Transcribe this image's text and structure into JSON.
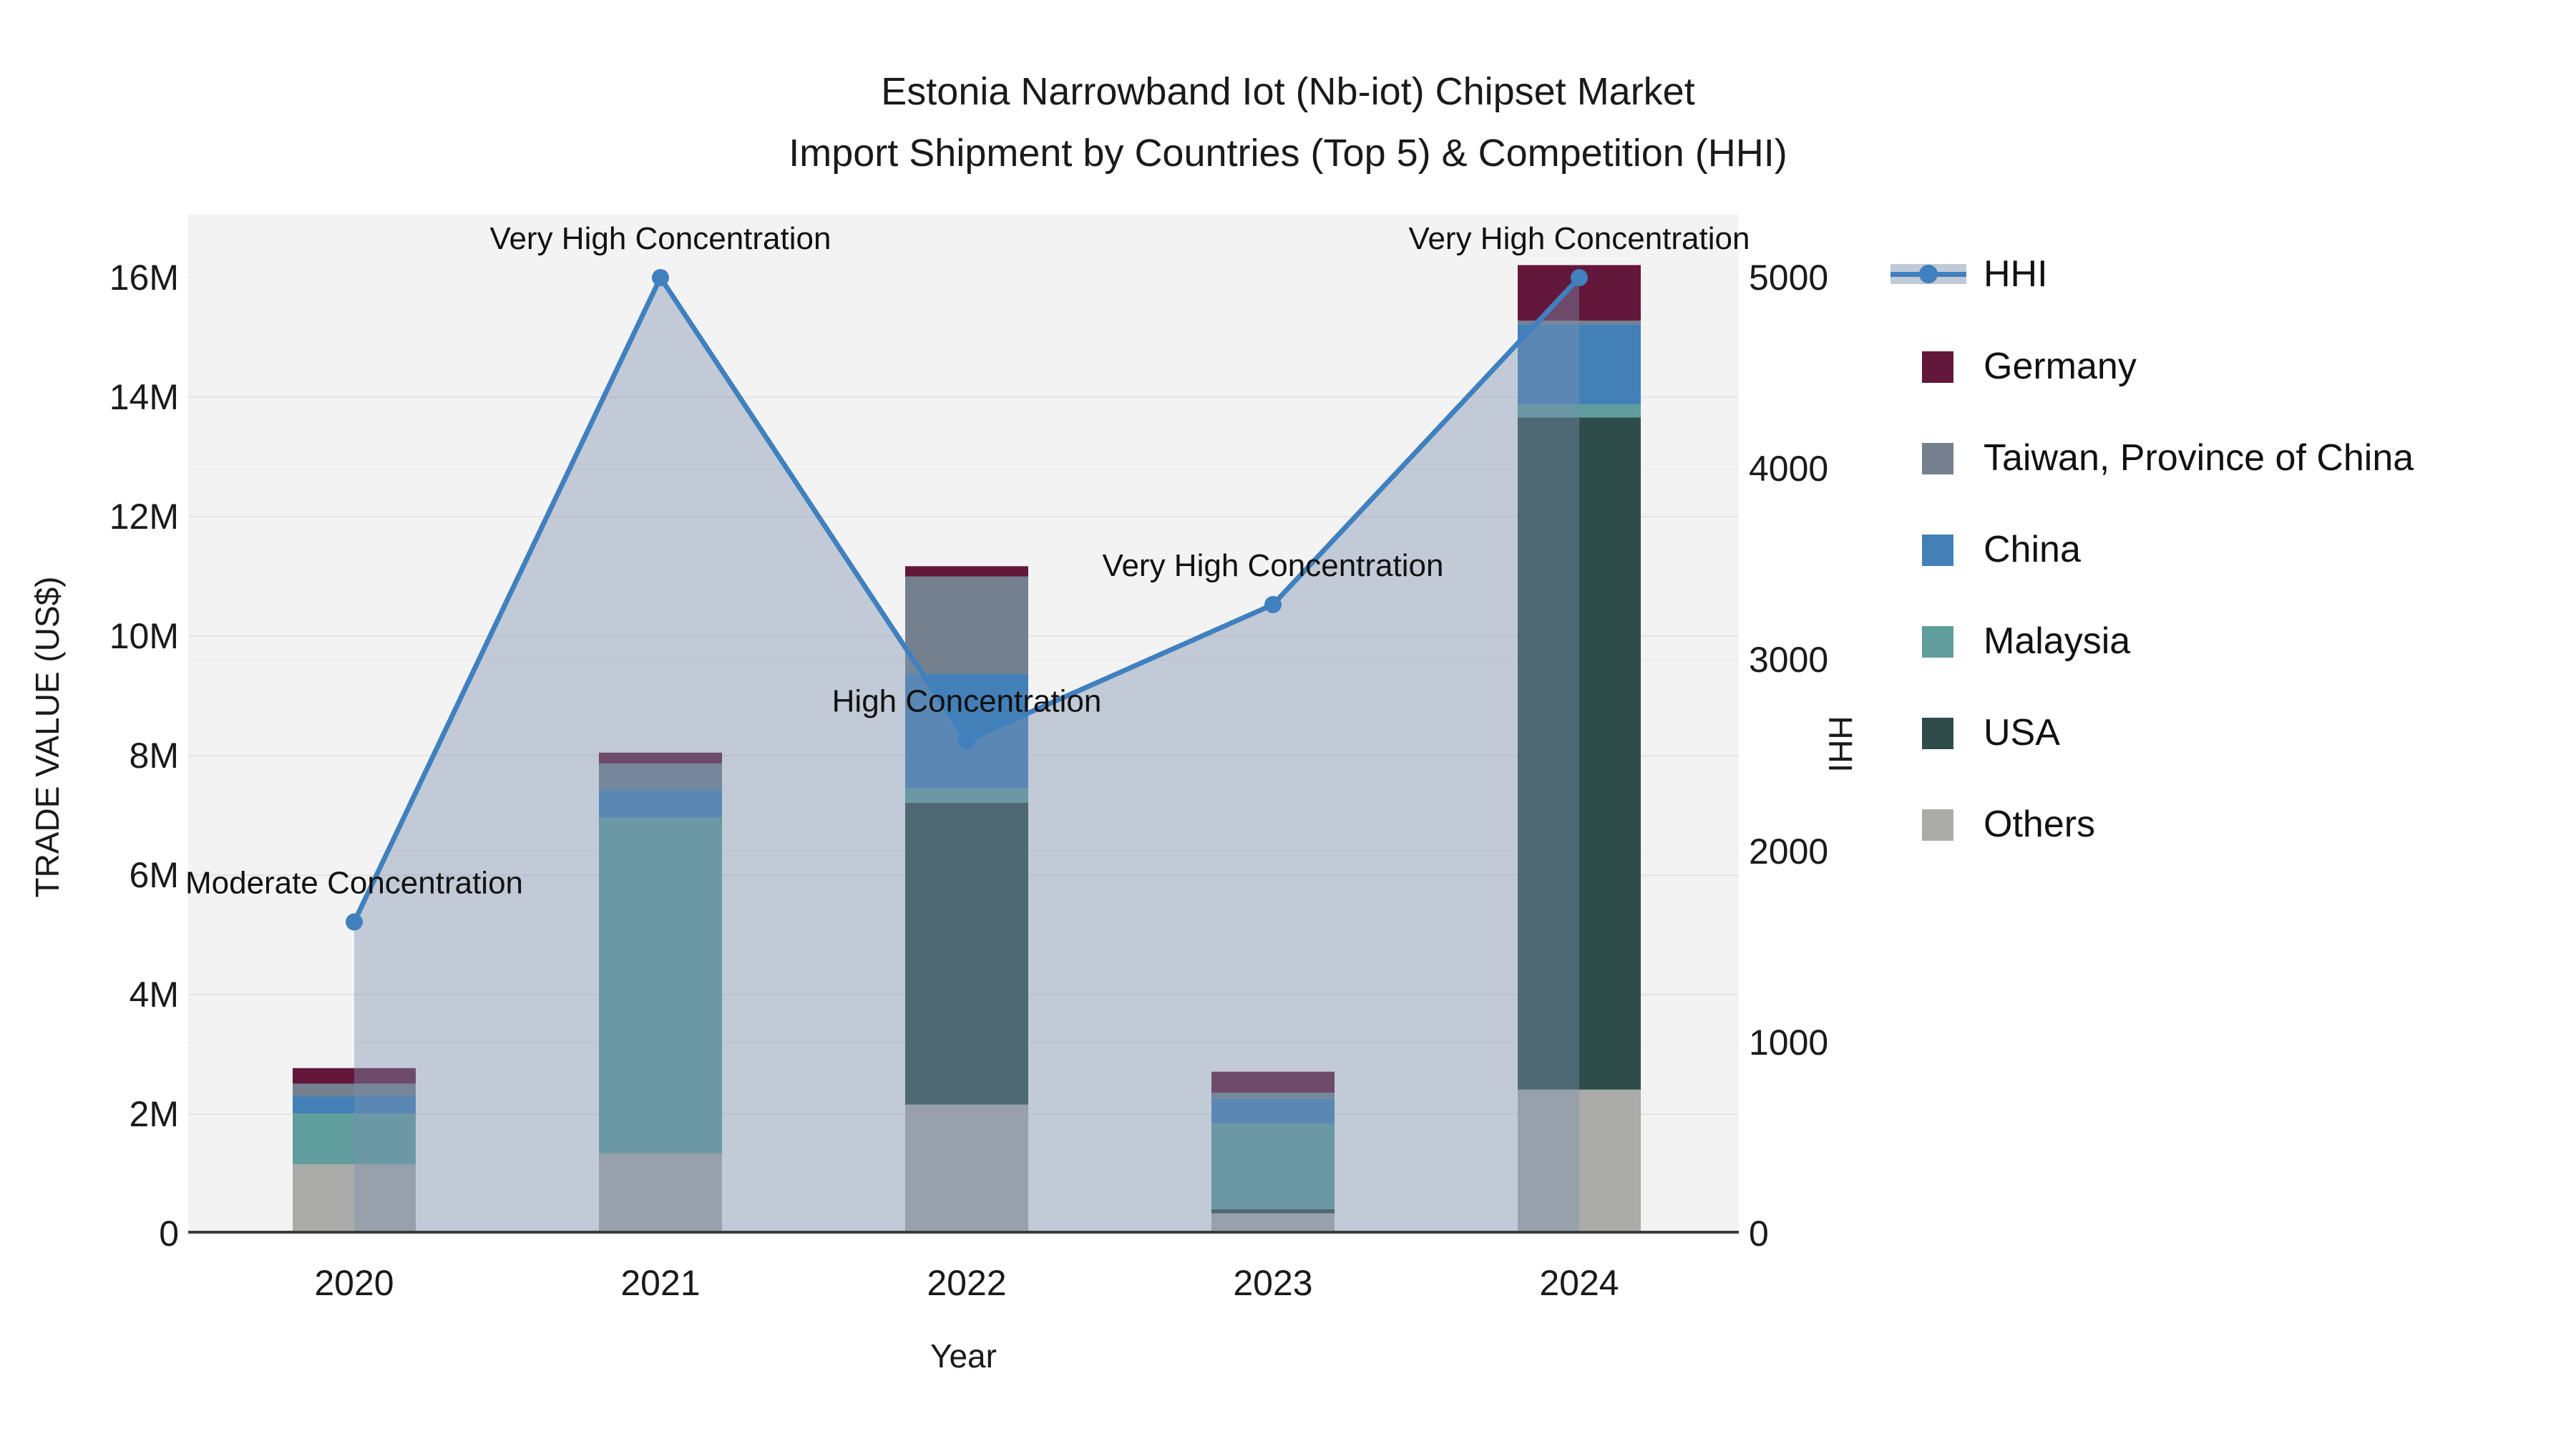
{
  "title": {
    "line1": "Estonia Narrowband Iot (Nb-iot) Chipset Market",
    "line2": "Import Shipment by Countries (Top 5) & Competition (HHI)"
  },
  "axes": {
    "y_left_label": "TRADE VALUE (US$)",
    "y_right_label": "HHI",
    "x_label": "Year",
    "left_ticks": [
      "0",
      "2M",
      "4M",
      "6M",
      "8M",
      "10M",
      "12M",
      "14M",
      "16M"
    ],
    "right_ticks": [
      "0",
      "1000",
      "2000",
      "3000",
      "4000",
      "5000"
    ]
  },
  "colors": {
    "plot_bg": "#f3f3f3",
    "grid_left": "#e4e4e4",
    "grid_right": "#ededed",
    "axis_line": "#3c3c3c",
    "area_fill": "rgba(125,145,175,0.42)",
    "hhi_line": "#4080BE",
    "annotation_text": "#111111"
  },
  "chart_data": {
    "type": "combo: stacked bar (trade value) + line with area (HHI)",
    "categories": [
      "2020",
      "2021",
      "2022",
      "2023",
      "2024"
    ],
    "bar_unit": "million US$",
    "ylabel_left": "TRADE VALUE (US$)",
    "ylabel_right": "HHI",
    "xlabel": "Year",
    "ylim_left_millions": [
      0,
      16.8
    ],
    "ylim_right_hhi": [
      0,
      5000
    ],
    "grid": "on",
    "legend_position": "right",
    "bar_series_bottom_to_top": [
      {
        "name": "Others",
        "color": "#ABABA9",
        "values": [
          1.16,
          1.34,
          2.16,
          0.34,
          2.41
        ]
      },
      {
        "name": "USA",
        "color": "#2E4D4A",
        "values": [
          0,
          0,
          5.05,
          0.07,
          11.25
        ]
      },
      {
        "name": "Malaysia",
        "color": "#609E9D",
        "values": [
          0.85,
          5.62,
          0.24,
          1.43,
          0.22
        ]
      },
      {
        "name": "China",
        "color": "#4380B8",
        "values": [
          0.29,
          0.47,
          1.92,
          0.42,
          1.34
        ]
      },
      {
        "name": "Taiwan, Province of China",
        "color": "#74808E",
        "values": [
          0.21,
          0.44,
          1.63,
          0.1,
          0.06
        ]
      },
      {
        "name": "Germany",
        "color": "#63173A",
        "values": [
          0.26,
          0.18,
          0.17,
          0.35,
          0.93
        ]
      }
    ],
    "bar_totals_millions": [
      2.77,
      8.05,
      11.17,
      2.71,
      16.21
    ],
    "line_series": {
      "name": "HHI",
      "color": "#4080BE",
      "values": [
        1630,
        5000,
        2580,
        3290,
        5000
      ]
    },
    "annotations": [
      "Moderate Concentration",
      "Very High Concentration",
      "High Concentration",
      "Very High Concentration",
      "Very High Concentration"
    ]
  },
  "legend": {
    "items": [
      {
        "label": "HHI",
        "type": "line",
        "color": "#4080BE"
      },
      {
        "label": "Germany",
        "type": "square",
        "color": "#63173A"
      },
      {
        "label": "Taiwan, Province of China",
        "type": "square",
        "color": "#74808E"
      },
      {
        "label": "China",
        "type": "square",
        "color": "#4380B8"
      },
      {
        "label": "Malaysia",
        "type": "square",
        "color": "#609E9D"
      },
      {
        "label": "USA",
        "type": "square",
        "color": "#2E4D4A"
      },
      {
        "label": "Others",
        "type": "square",
        "color": "#ABABA9"
      }
    ]
  }
}
